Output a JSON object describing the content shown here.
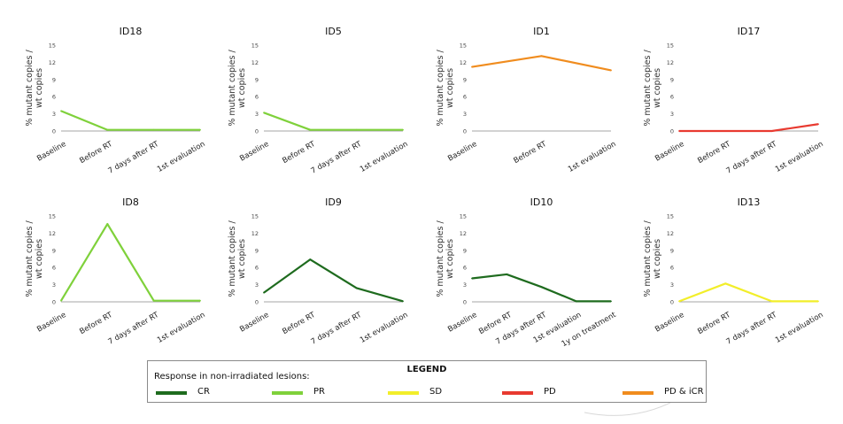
{
  "colors": {
    "CR": "#1e6b1e",
    "PR": "#7fd13b",
    "SD": "#f2ee2a",
    "PD": "#e83a30",
    "PD_iCR": "#f08c1e"
  },
  "chart_data": [
    {
      "type": "line",
      "title": "ID18",
      "ylabel": "% mutant copies / wt copies",
      "ylim": [
        0,
        15
      ],
      "yticks": [
        "0",
        "3",
        "6",
        "9",
        "12",
        "15"
      ],
      "categories": [
        "Baseline",
        "Before RT",
        "7 days after RT",
        "1st evaluation"
      ],
      "series": [
        {
          "response": "PR",
          "values": [
            3.5,
            0.2,
            0.2,
            0.2
          ]
        }
      ]
    },
    {
      "type": "line",
      "title": "ID5",
      "ylabel": "% mutant copies / wt copies",
      "ylim": [
        0,
        15
      ],
      "yticks": [
        "0",
        "3",
        "6",
        "9",
        "12",
        "15"
      ],
      "categories": [
        "Baseline",
        "Before RT",
        "7 days after RT",
        "1st evaluation"
      ],
      "series": [
        {
          "response": "PR",
          "values": [
            3.2,
            0.2,
            0.2,
            0.2
          ]
        }
      ]
    },
    {
      "type": "line",
      "title": "ID1",
      "ylabel": "% mutant copies / wt copies",
      "ylim": [
        0,
        15
      ],
      "yticks": [
        "0",
        "3",
        "6",
        "9",
        "12",
        "15"
      ],
      "categories": [
        "Baseline",
        "Before RT",
        "1st evaluation"
      ],
      "series": [
        {
          "response": "PD_iCR",
          "values": [
            11.2,
            13.1,
            10.6
          ]
        }
      ]
    },
    {
      "type": "line",
      "title": "ID17",
      "ylabel": "% mutant copies / wt copies",
      "ylim": [
        0,
        15
      ],
      "yticks": [
        "0",
        "3",
        "6",
        "9",
        "12",
        "15"
      ],
      "categories": [
        "Baseline",
        "Before RT",
        "7 days after RT",
        "1st evaluation"
      ],
      "series": [
        {
          "response": "PD",
          "values": [
            0,
            0,
            0,
            1.2
          ]
        }
      ]
    },
    {
      "type": "line",
      "title": "ID8",
      "ylabel": "% mutant copies / wt copies",
      "ylim": [
        0,
        15
      ],
      "yticks": [
        "0",
        "3",
        "6",
        "9",
        "12",
        "15"
      ],
      "categories": [
        "Baseline",
        "Before RT",
        "7 days after RT",
        "1st evaluation"
      ],
      "series": [
        {
          "response": "PR",
          "values": [
            0.2,
            13.6,
            0.2,
            0.2
          ]
        }
      ]
    },
    {
      "type": "line",
      "title": "ID9",
      "ylabel": "% mutant copies / wt copies",
      "ylim": [
        0,
        15
      ],
      "yticks": [
        "0",
        "3",
        "6",
        "9",
        "12",
        "15"
      ],
      "categories": [
        "Baseline",
        "Before RT",
        "7 days after RT",
        "1st evaluation"
      ],
      "series": [
        {
          "response": "CR",
          "values": [
            1.6,
            7.4,
            2.4,
            0.1
          ]
        }
      ]
    },
    {
      "type": "line",
      "title": "ID10",
      "ylabel": "% mutant copies / wt copies",
      "ylim": [
        0,
        15
      ],
      "yticks": [
        "0",
        "3",
        "6",
        "9",
        "12",
        "15"
      ],
      "categories": [
        "Baseline",
        "Before RT",
        "7 days after RT",
        "1st evaluation",
        "1y on treatment"
      ],
      "series": [
        {
          "response": "CR",
          "values": [
            4.1,
            4.8,
            2.6,
            0.1,
            0.1
          ]
        }
      ]
    },
    {
      "type": "line",
      "title": "ID13",
      "ylabel": "% mutant copies / wt copies",
      "ylim": [
        0,
        15
      ],
      "yticks": [
        "0",
        "3",
        "6",
        "9",
        "12",
        "15"
      ],
      "categories": [
        "Baseline",
        "Before RT",
        "7 days after RT",
        "1st evaluation"
      ],
      "series": [
        {
          "response": "SD",
          "values": [
            0.1,
            3.2,
            0.1,
            0.1
          ]
        }
      ]
    }
  ],
  "legend": {
    "title": "LEGEND",
    "subtitle": "Response in non-irradiated lesions:",
    "items": [
      {
        "key": "CR",
        "label": "CR"
      },
      {
        "key": "PR",
        "label": "PR"
      },
      {
        "key": "SD",
        "label": "SD"
      },
      {
        "key": "PD",
        "label": "PD"
      },
      {
        "key": "PD_iCR",
        "label": "PD & iCR"
      }
    ]
  }
}
